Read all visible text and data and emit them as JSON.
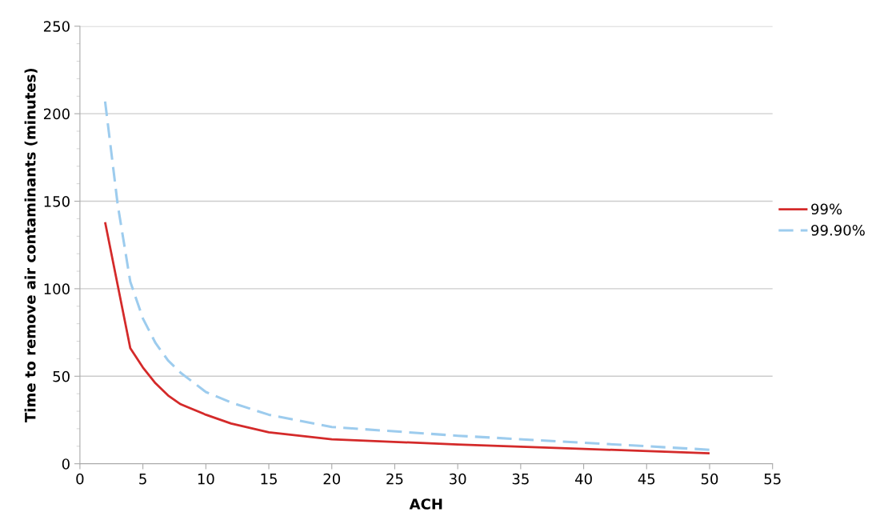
{
  "chart_data": {
    "type": "line",
    "xlabel": "ACH",
    "ylabel": "Time to remove air contaminants (minutes)",
    "x": [
      2,
      3,
      4,
      5,
      6,
      7,
      8,
      10,
      12,
      15,
      20,
      30,
      40,
      50
    ],
    "series": [
      {
        "name": "99%",
        "color": "#d42a2a",
        "line_style": "solid",
        "values": [
          138,
          102,
          66,
          55,
          46,
          39,
          34,
          28,
          23,
          18,
          14,
          11,
          8.5,
          6
        ]
      },
      {
        "name": "99.90%",
        "color": "#9dccee",
        "line_style": "dashed",
        "values": [
          207,
          148,
          104,
          83,
          69,
          59,
          52,
          41,
          35,
          28,
          21,
          16,
          12,
          8
        ]
      }
    ],
    "xlim": [
      0,
      55
    ],
    "xticks": [
      0,
      5,
      10,
      15,
      20,
      25,
      30,
      35,
      40,
      45,
      50,
      55
    ],
    "ylim": [
      0,
      250
    ],
    "yticks": [
      0,
      50,
      100,
      150,
      200,
      250
    ],
    "grid": "y",
    "legend": "right",
    "marker": "none"
  }
}
